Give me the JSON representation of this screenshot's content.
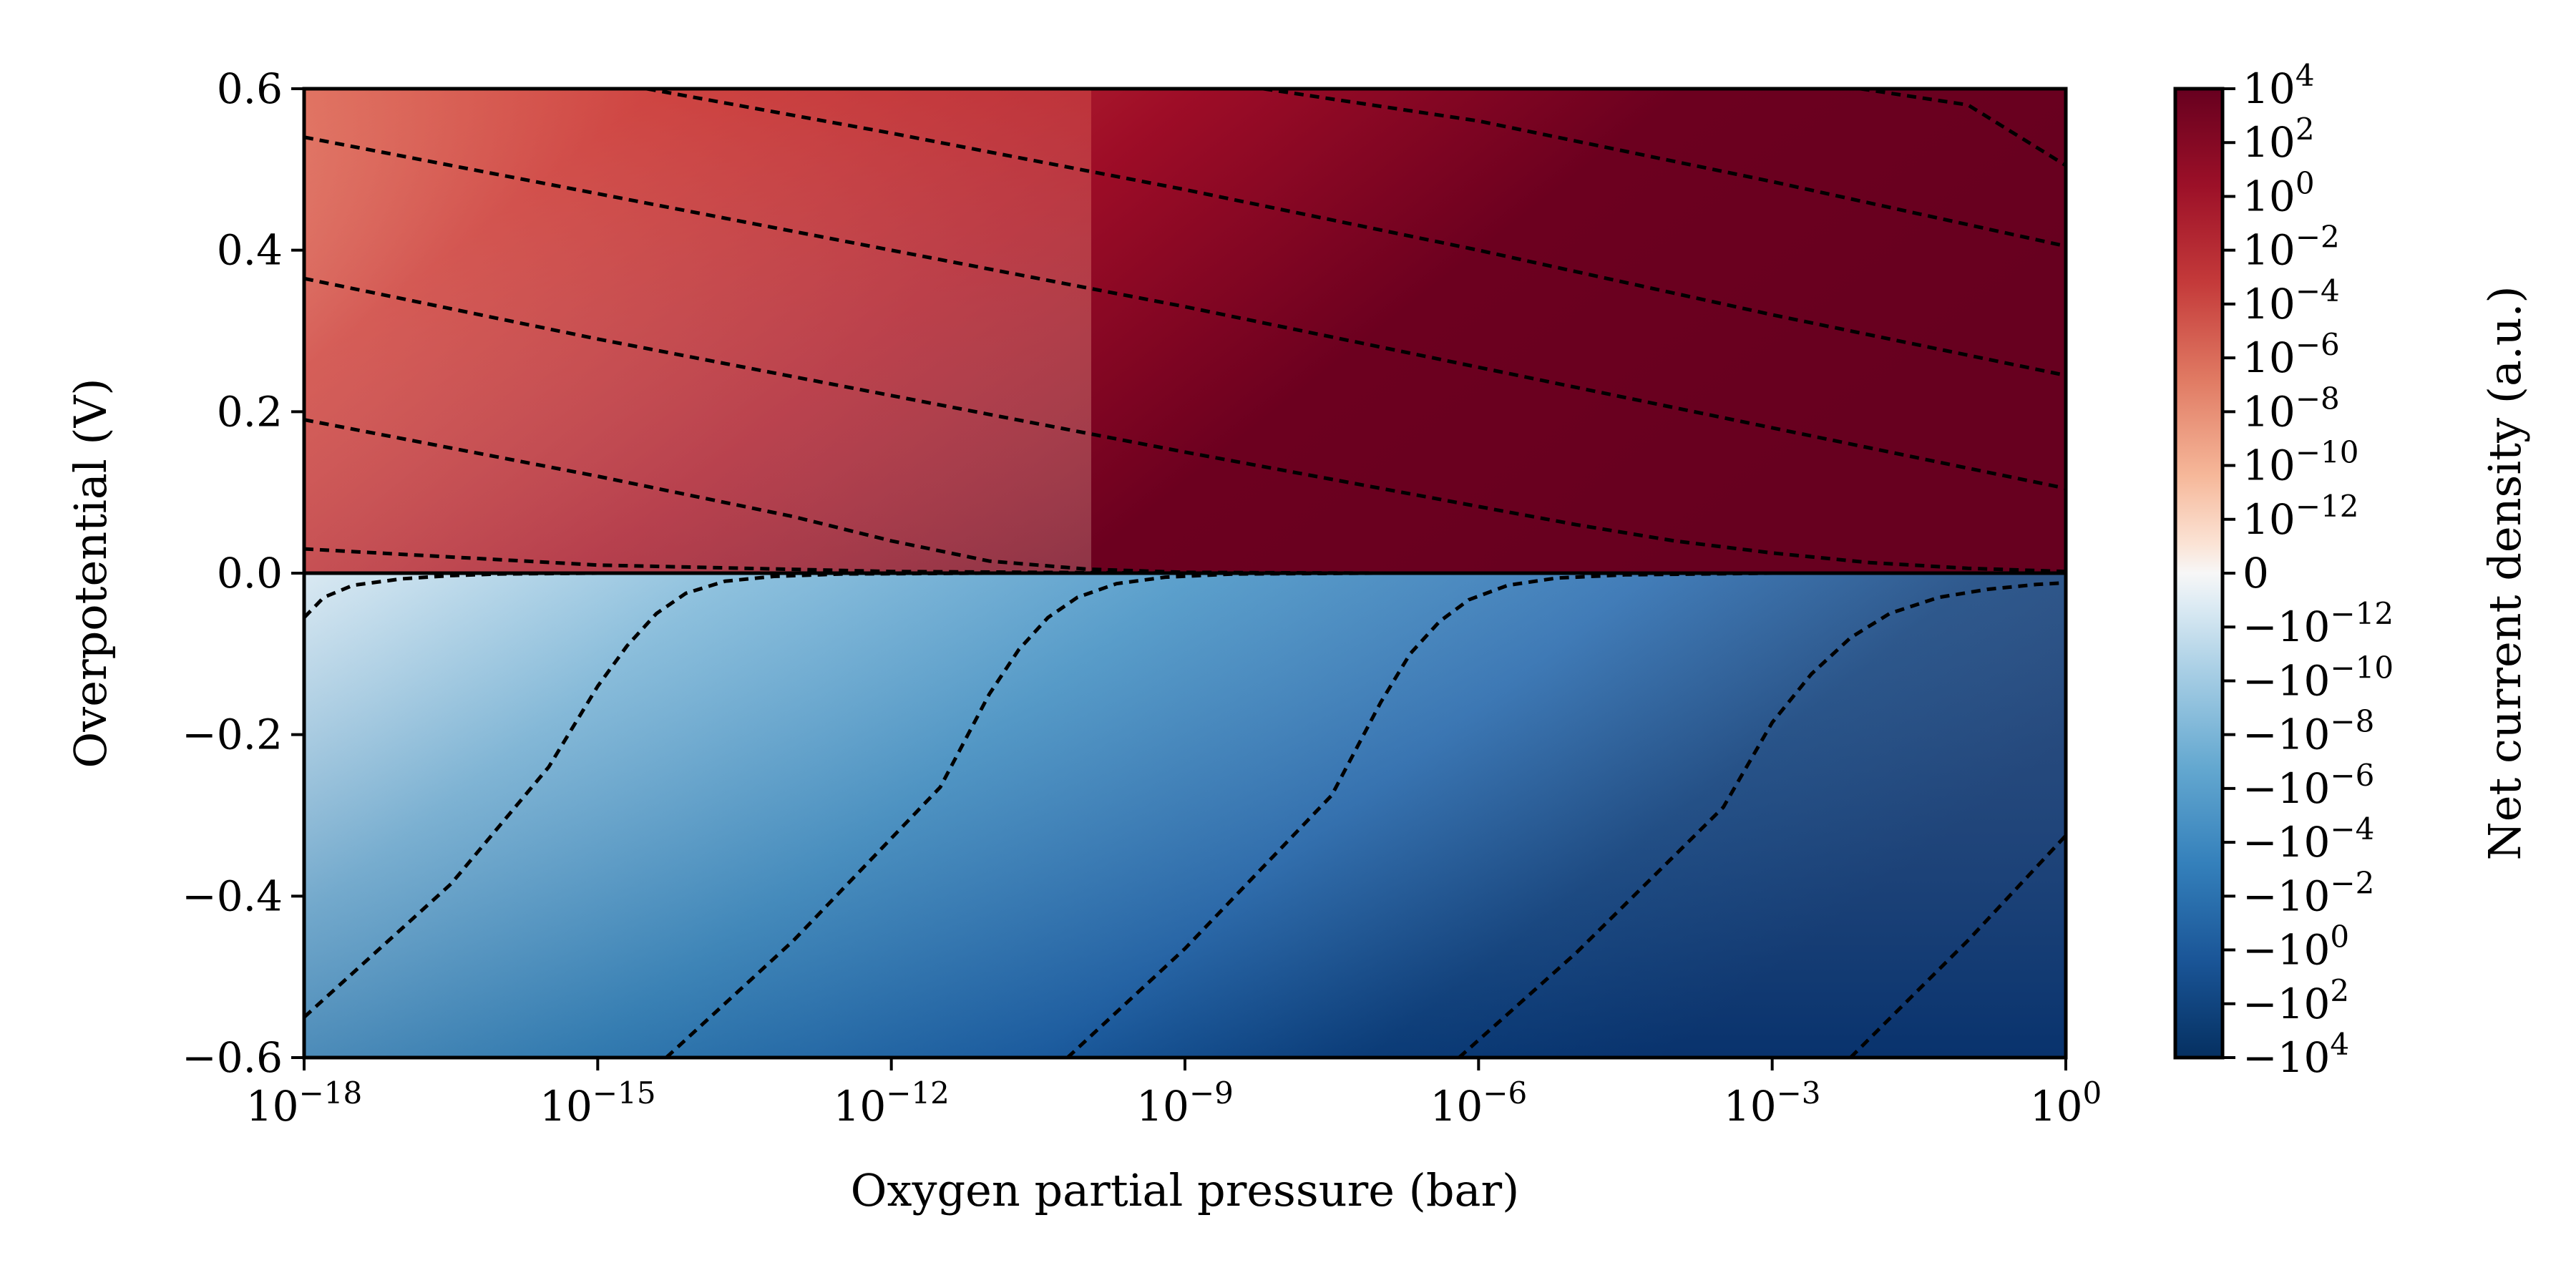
{
  "chart_data": {
    "type": "heatmap",
    "title": "",
    "xlabel": "Oxygen partial pressure (bar)",
    "ylabel": "Overpotential (V)",
    "x_scale": "log",
    "x_range_bar": [
      1e-18,
      1
    ],
    "y_range_V": [
      -0.6,
      0.6
    ],
    "x_ticks": [
      {
        "value_bar": 1e-18,
        "base": "10",
        "exp": "−18"
      },
      {
        "value_bar": 1e-15,
        "base": "10",
        "exp": "−15"
      },
      {
        "value_bar": 1e-12,
        "base": "10",
        "exp": "−12"
      },
      {
        "value_bar": 1e-09,
        "base": "10",
        "exp": "−9"
      },
      {
        "value_bar": 1e-06,
        "base": "10",
        "exp": "−6"
      },
      {
        "value_bar": 0.001,
        "base": "10",
        "exp": "−3"
      },
      {
        "value_bar": 1,
        "base": "10",
        "exp": "0"
      }
    ],
    "y_ticks": [
      {
        "value_V": 0.6,
        "label": "0.6"
      },
      {
        "value_V": 0.4,
        "label": "0.4"
      },
      {
        "value_V": 0.2,
        "label": "0.2"
      },
      {
        "value_V": 0.0,
        "label": "0.0"
      },
      {
        "value_V": -0.2,
        "label": "−0.2"
      },
      {
        "value_V": -0.4,
        "label": "−0.4"
      },
      {
        "value_V": -0.6,
        "label": "−0.6"
      }
    ],
    "colorbar": {
      "label": "Net current density (a.u.)",
      "scale": "symlog",
      "colormap": "RdBu_r",
      "top_color": "#67001f",
      "bottom_color": "#053061",
      "ticks": [
        {
          "value": 10000.0,
          "base": "10",
          "exp": "4"
        },
        {
          "value": 100.0,
          "base": "10",
          "exp": "2"
        },
        {
          "value": 1,
          "base": "10",
          "exp": "0"
        },
        {
          "value": 0.01,
          "base": "10",
          "exp": "−2"
        },
        {
          "value": 0.0001,
          "base": "10",
          "exp": "−4"
        },
        {
          "value": 1e-06,
          "base": "10",
          "exp": "−6"
        },
        {
          "value": 1e-08,
          "base": "10",
          "exp": "−8"
        },
        {
          "value": 1e-10,
          "base": "10",
          "exp": "−10"
        },
        {
          "value": 1e-12,
          "base": "10",
          "exp": "−12"
        },
        {
          "value": 0,
          "base": "0",
          "exp": ""
        },
        {
          "value": -1e-12,
          "base": "−10",
          "exp": "−12"
        },
        {
          "value": -1e-10,
          "base": "−10",
          "exp": "−10"
        },
        {
          "value": -1e-08,
          "base": "−10",
          "exp": "−8"
        },
        {
          "value": -1e-06,
          "base": "−10",
          "exp": "−6"
        },
        {
          "value": -0.0001,
          "base": "−10",
          "exp": "−4"
        },
        {
          "value": -0.01,
          "base": "−10",
          "exp": "−2"
        },
        {
          "value": -1,
          "base": "−10",
          "exp": "0"
        },
        {
          "value": -100.0,
          "base": "−10",
          "exp": "2"
        },
        {
          "value": -10000.0,
          "base": "−10",
          "exp": "4"
        }
      ]
    },
    "contours": {
      "style": "dashed",
      "color": "#000000",
      "anodic": [
        {
          "log10_pO2": [
            -18,
            -15,
            -12,
            -9,
            -6,
            -4.5,
            -3,
            0
          ],
          "eta_V": [
            0.03,
            0.01,
            0.002,
            0.0,
            0.0,
            0.0,
            0.0,
            0.0
          ]
        },
        {
          "log10_pO2": [
            -18,
            -15,
            -13,
            -12,
            -11,
            -10,
            -9,
            -7,
            -5,
            0
          ],
          "eta_V": [
            0.19,
            0.12,
            0.07,
            0.04,
            0.015,
            0.005,
            0.001,
            0.0,
            0.0,
            0.0
          ]
        },
        {
          "log10_pO2": [
            -18,
            -15,
            -12,
            -9,
            -7,
            -5,
            -4,
            -3,
            -2,
            -1,
            0
          ],
          "eta_V": [
            0.365,
            0.29,
            0.22,
            0.15,
            0.105,
            0.06,
            0.04,
            0.025,
            0.013,
            0.006,
            0.002
          ]
        },
        {
          "log10_pO2": [
            -18,
            -15,
            -12,
            -9,
            -6,
            -3,
            -1,
            0
          ],
          "eta_V": [
            0.54,
            0.47,
            0.4,
            0.33,
            0.255,
            0.18,
            0.13,
            0.105
          ]
        },
        {
          "log10_pO2": [
            -14.5,
            -12,
            -9,
            -6,
            -3,
            0
          ],
          "eta_V": [
            0.6,
            0.545,
            0.475,
            0.4,
            0.32,
            0.245
          ]
        },
        {
          "log10_pO2": [
            -8.2,
            -6,
            -3,
            0
          ],
          "eta_V": [
            0.6,
            0.56,
            0.485,
            0.405
          ]
        },
        {
          "log10_pO2": [
            -2.1,
            -1,
            0
          ],
          "eta_V": [
            0.6,
            0.58,
            0.505
          ]
        }
      ],
      "cathodic": [
        {
          "log10_pO2": [
            -18,
            -17.8,
            -17.5,
            -17,
            -16.5,
            -16,
            -15,
            -14,
            -12
          ],
          "eta_V": [
            -0.055,
            -0.03,
            -0.015,
            -0.007,
            -0.003,
            -0.001,
            0.0,
            0.0,
            0.0
          ]
        },
        {
          "log10_pO2": [
            -18,
            -16.5,
            -15.5,
            -15,
            -14.7,
            -14.4,
            -14.1,
            -13.7,
            -13.2,
            -12.5,
            -11
          ],
          "eta_V": [
            -0.55,
            -0.385,
            -0.24,
            -0.14,
            -0.09,
            -0.05,
            -0.025,
            -0.01,
            -0.004,
            -0.001,
            0.0
          ]
        },
        {
          "log10_pO2": [
            -14.3,
            -13,
            -11.5,
            -11.0,
            -10.7,
            -10.4,
            -10.1,
            -9.7,
            -9.2,
            -8.5,
            -7
          ],
          "eta_V": [
            -0.6,
            -0.455,
            -0.265,
            -0.15,
            -0.095,
            -0.055,
            -0.03,
            -0.013,
            -0.005,
            -0.001,
            0.0
          ]
        },
        {
          "log10_pO2": [
            -10.2,
            -9,
            -7.5,
            -7.0,
            -6.7,
            -6.4,
            -6.1,
            -5.7,
            -5.2,
            -4.5,
            -3
          ],
          "eta_V": [
            -0.6,
            -0.465,
            -0.275,
            -0.16,
            -0.1,
            -0.06,
            -0.033,
            -0.015,
            -0.006,
            -0.002,
            0.0
          ]
        },
        {
          "log10_pO2": [
            -6.2,
            -5,
            -3.5,
            -3.0,
            -2.6,
            -2.2,
            -1.8,
            -1.3,
            -0.8,
            -0.3,
            0
          ],
          "eta_V": [
            -0.6,
            -0.47,
            -0.29,
            -0.185,
            -0.125,
            -0.08,
            -0.05,
            -0.03,
            -0.02,
            -0.014,
            -0.012
          ]
        },
        {
          "log10_pO2": [
            -2.2,
            -1,
            0
          ],
          "eta_V": [
            -0.6,
            -0.455,
            -0.325
          ]
        }
      ]
    }
  }
}
